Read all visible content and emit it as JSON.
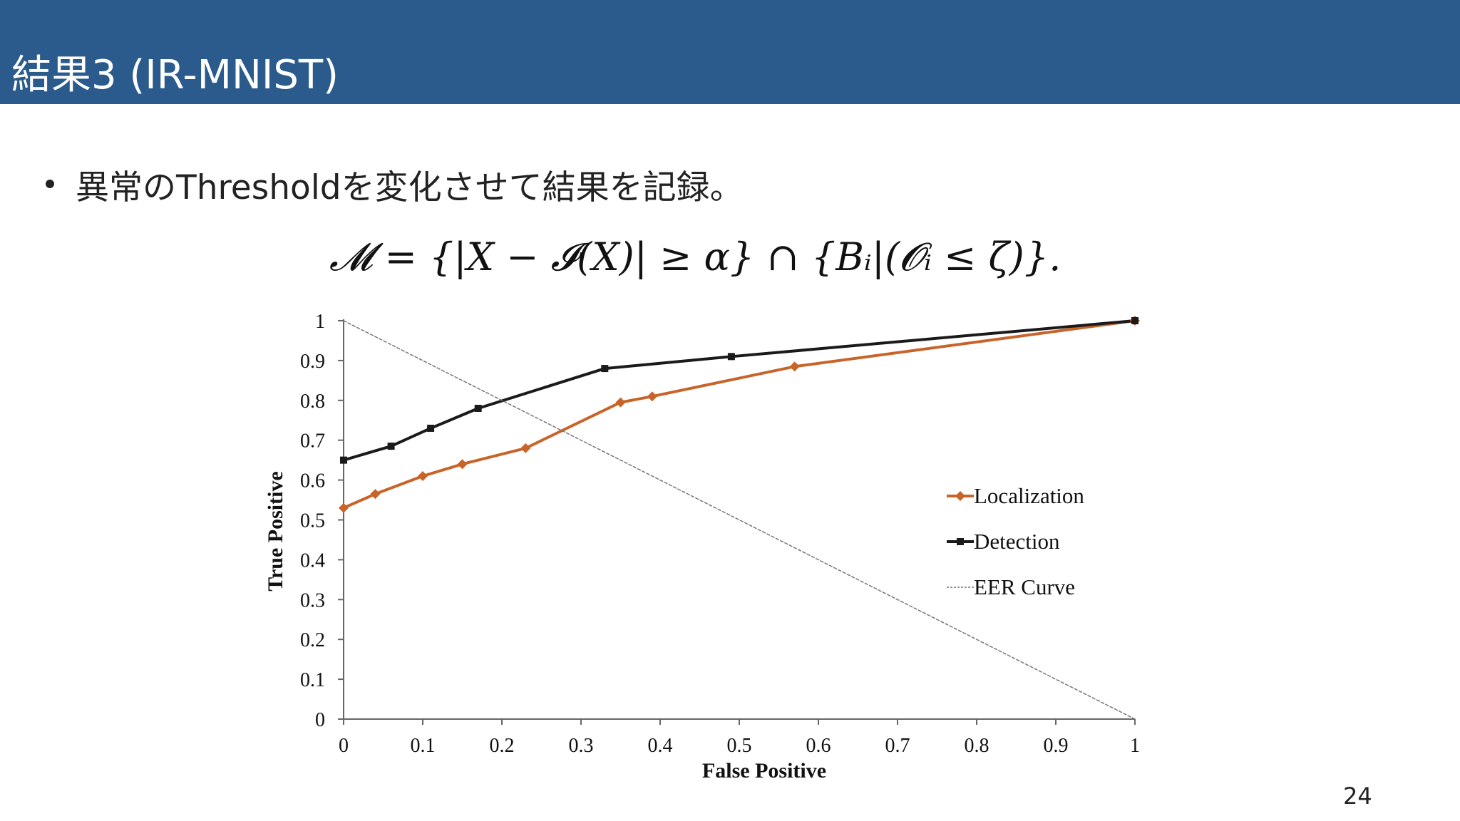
{
  "slide": {
    "title": "結果3 (IR-MNIST)",
    "bullet": "異常のThresholdを変化させて結果を記録。",
    "formula": "𝓜 = {|X − 𝓘(X)| ≥ α} ∩ {Bᵢ|(𝓞ᵢ ≤ ζ)}.",
    "page_number": "24"
  },
  "colors": {
    "header_bg": "#2a5b8c",
    "localization": "#c8642a",
    "detection": "#1a1a1a",
    "eer": "#777777"
  },
  "chart_data": {
    "type": "line",
    "title": "",
    "xlabel": "False Positive",
    "ylabel": "True Positive",
    "xlim": [
      0,
      1
    ],
    "ylim": [
      0,
      1
    ],
    "x_ticks": [
      0,
      0.1,
      0.2,
      0.3,
      0.4,
      0.5,
      0.6,
      0.7,
      0.8,
      0.9,
      1
    ],
    "x_tick_labels": [
      "0",
      "0.1",
      "0.2",
      "0.3",
      "0.4",
      "0.5",
      "0.6",
      "0.7",
      "0.8",
      "0.9",
      "1"
    ],
    "y_ticks": [
      0,
      0.1,
      0.2,
      0.3,
      0.4,
      0.5,
      0.6,
      0.7,
      0.8,
      0.9,
      1
    ],
    "y_tick_labels": [
      "0",
      "0.1",
      "0.2",
      "0.3",
      "0.4",
      "0.5",
      "0.6",
      "0.7",
      "0.8",
      "0.9",
      "1"
    ],
    "legend_position": "right",
    "series": [
      {
        "name": "Localization",
        "marker": "diamond",
        "x": [
          0,
          0.04,
          0.1,
          0.15,
          0.23,
          0.35,
          0.39,
          0.57,
          1
        ],
        "y": [
          0.53,
          0.565,
          0.61,
          0.64,
          0.68,
          0.795,
          0.81,
          0.885,
          1
        ]
      },
      {
        "name": "Detection",
        "marker": "square",
        "x": [
          0,
          0.06,
          0.11,
          0.17,
          0.33,
          0.49,
          1
        ],
        "y": [
          0.65,
          0.685,
          0.73,
          0.78,
          0.88,
          0.91,
          1
        ]
      },
      {
        "name": "EER Curve",
        "marker": "none",
        "dashed": true,
        "x": [
          0,
          1
        ],
        "y": [
          1,
          0
        ]
      }
    ]
  }
}
